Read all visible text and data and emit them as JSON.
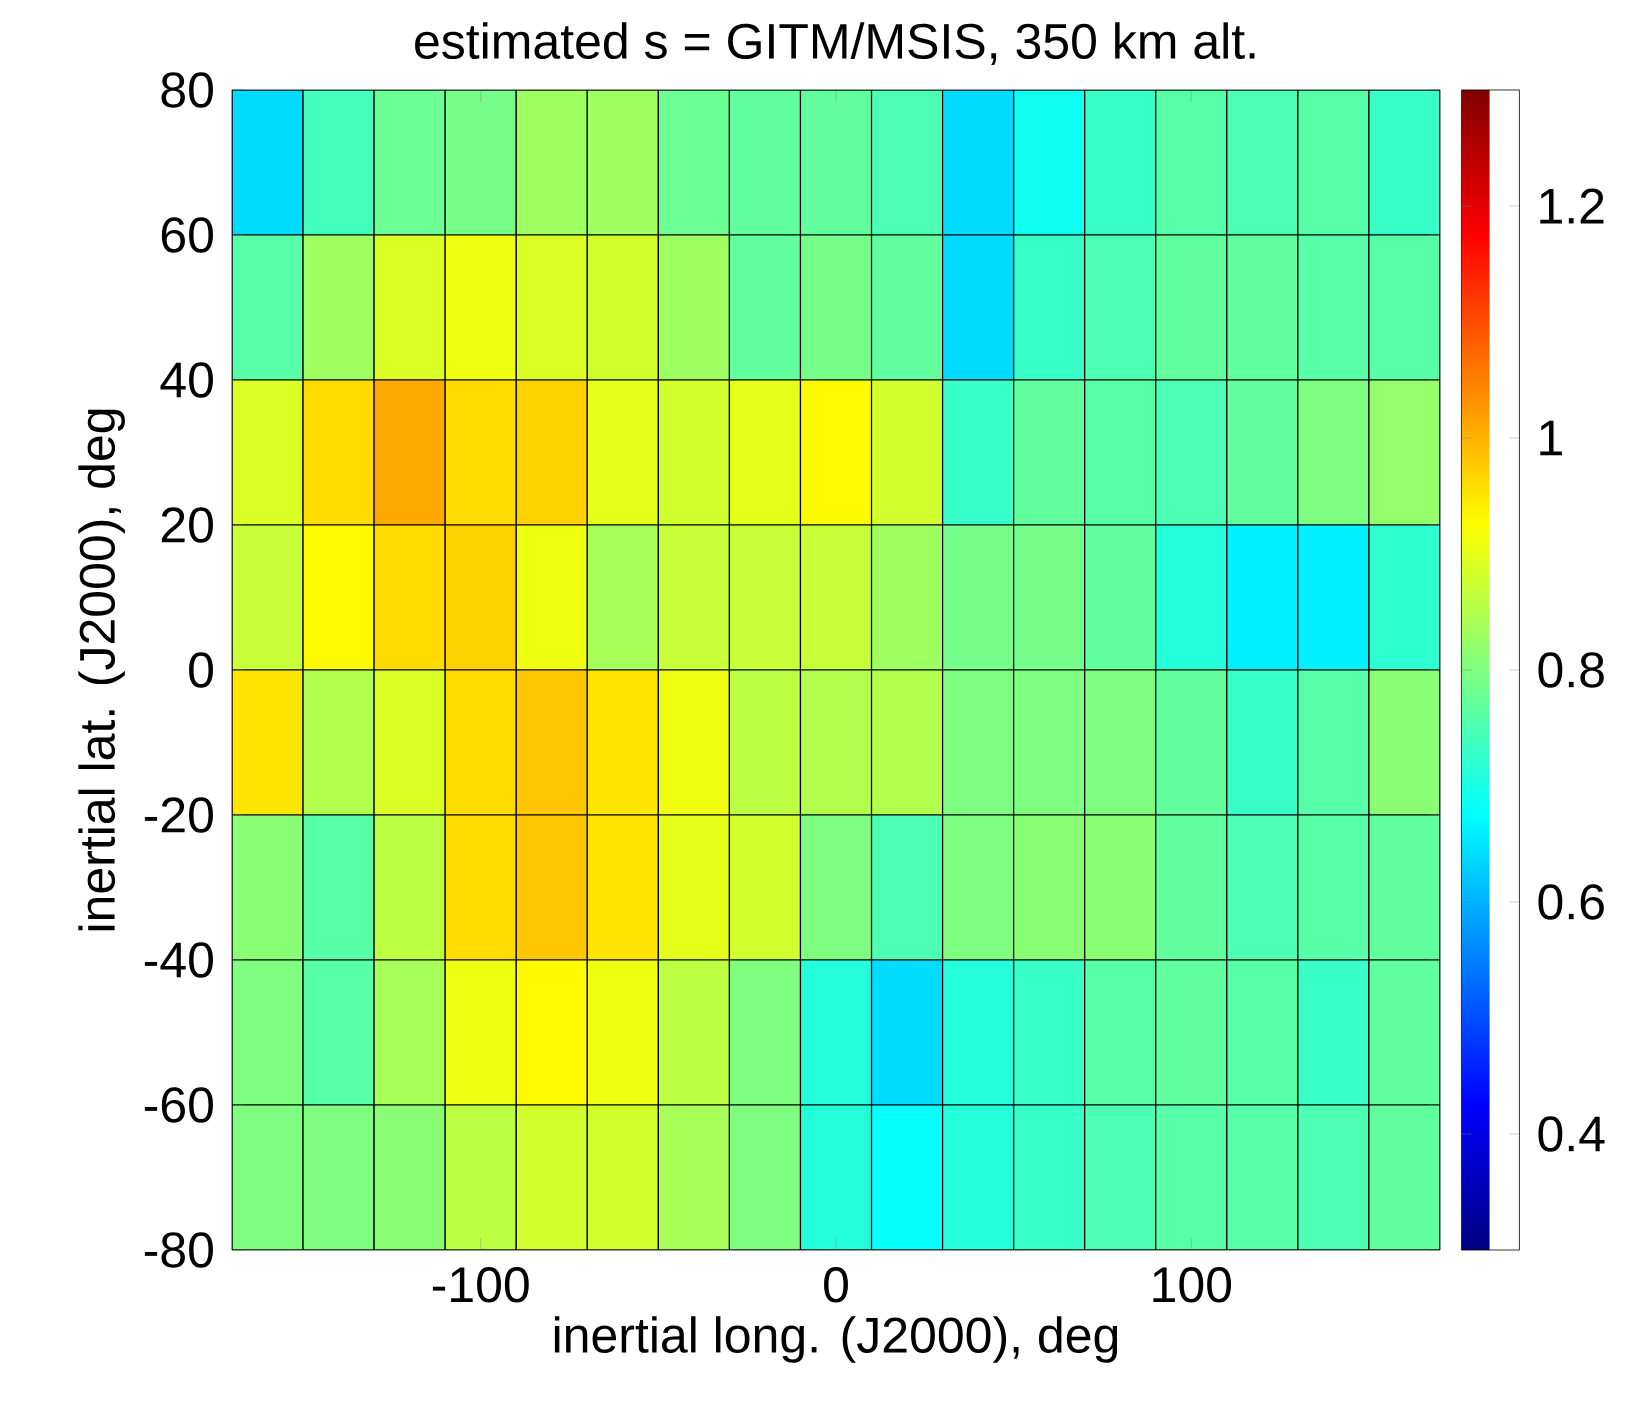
{
  "chart_data": {
    "type": "heatmap",
    "title": "estimated s = GITM/MSIS, 350 km alt.",
    "xlabel": "inertial long. (J2000), deg",
    "ylabel": "inertial lat. (J2000), deg",
    "x": [
      -160,
      -140,
      -120,
      -100,
      -80,
      -60,
      -40,
      -20,
      0,
      20,
      40,
      60,
      80,
      100,
      120,
      140,
      160
    ],
    "y": [
      70,
      50,
      30,
      10,
      -10,
      -30,
      -50,
      -70
    ],
    "xlim": [
      -170,
      170
    ],
    "ylim": [
      -80,
      80
    ],
    "xticks": [
      -100,
      0,
      100
    ],
    "yticks": [
      -80,
      -60,
      -40,
      -20,
      0,
      20,
      40,
      60,
      80
    ],
    "clim": [
      0.3,
      1.3
    ],
    "cticks": [
      0.4,
      0.6,
      0.8,
      1,
      1.2
    ],
    "cells": [
      [
        0.64,
        0.74,
        0.78,
        0.79,
        0.83,
        0.83,
        0.78,
        0.77,
        0.77,
        0.75,
        0.64,
        0.69,
        0.73,
        0.76,
        0.75,
        0.76,
        0.73
      ],
      [
        0.76,
        0.83,
        0.89,
        0.91,
        0.89,
        0.88,
        0.83,
        0.77,
        0.79,
        0.77,
        0.64,
        0.73,
        0.75,
        0.77,
        0.77,
        0.76,
        0.76
      ],
      [
        0.89,
        0.96,
        1.01,
        0.96,
        0.97,
        0.9,
        0.88,
        0.9,
        0.93,
        0.88,
        0.73,
        0.77,
        0.76,
        0.75,
        0.77,
        0.8,
        0.82
      ],
      [
        0.87,
        0.93,
        0.96,
        0.97,
        0.91,
        0.84,
        0.87,
        0.87,
        0.87,
        0.83,
        0.79,
        0.79,
        0.77,
        0.71,
        0.66,
        0.66,
        0.72
      ],
      [
        0.95,
        0.85,
        0.89,
        0.96,
        0.98,
        0.95,
        0.91,
        0.86,
        0.85,
        0.85,
        0.8,
        0.8,
        0.8,
        0.77,
        0.73,
        0.76,
        0.81
      ],
      [
        0.81,
        0.76,
        0.86,
        0.96,
        0.98,
        0.95,
        0.9,
        0.88,
        0.8,
        0.75,
        0.8,
        0.81,
        0.81,
        0.77,
        0.75,
        0.76,
        0.77
      ],
      [
        0.8,
        0.76,
        0.84,
        0.91,
        0.93,
        0.91,
        0.86,
        0.8,
        0.71,
        0.64,
        0.71,
        0.73,
        0.76,
        0.77,
        0.76,
        0.73,
        0.77
      ],
      [
        0.8,
        0.8,
        0.81,
        0.86,
        0.88,
        0.88,
        0.84,
        0.8,
        0.71,
        0.68,
        0.71,
        0.73,
        0.75,
        0.76,
        0.76,
        0.75,
        0.77
      ]
    ]
  }
}
